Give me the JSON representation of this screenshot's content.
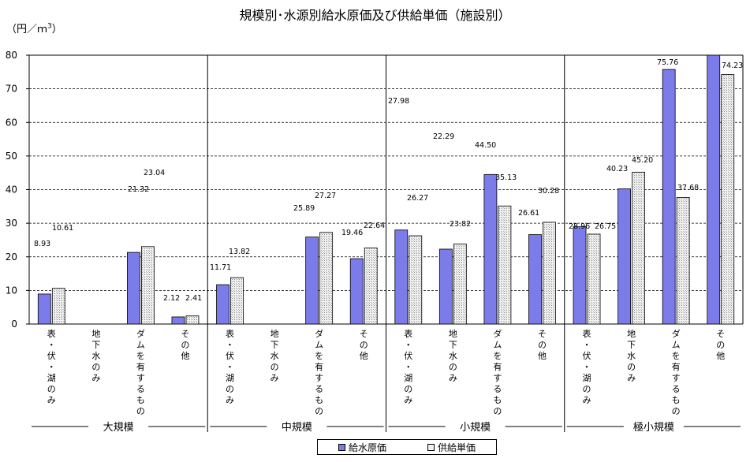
{
  "title": "規模別･水源別給水原価及び供給単価（施設別）",
  "unit": {
    "label": "（円／ｍ",
    "sup": "3",
    "close": "）"
  },
  "chart_data": {
    "type": "bar",
    "title": "規模別･水源別給水原価及び供給単価（施設別）",
    "ylabel": "（円／ｍ3）",
    "ylim": [
      0,
      80
    ],
    "yticks": [
      0,
      10,
      20,
      30,
      40,
      50,
      60,
      70,
      80
    ],
    "grid": true,
    "legend_position": "bottom",
    "colors": {
      "series_a": "#7b7bea",
      "series_b": "#f2f2f2"
    },
    "groups": [
      "大規模",
      "中規模",
      "小規模",
      "極小規模"
    ],
    "categories": [
      "表・伏・湖のみ",
      "地下水のみ",
      "ダムを有するもの",
      "その他"
    ],
    "series": [
      {
        "name": "給水原価",
        "values": [
          [
            8.93,
            null,
            21.32,
            2.12
          ],
          [
            11.71,
            null,
            25.89,
            19.46
          ],
          [
            27.98,
            22.29,
            44.5,
            26.61
          ],
          [
            28.96,
            40.23,
            75.76,
            81.5
          ]
        ]
      },
      {
        "name": "供給単価",
        "values": [
          [
            10.61,
            null,
            23.04,
            2.41
          ],
          [
            13.82,
            null,
            27.27,
            22.64
          ],
          [
            26.27,
            23.82,
            35.13,
            30.28
          ],
          [
            26.75,
            45.2,
            37.68,
            74.23
          ]
        ]
      }
    ],
    "data_labels": {
      "series_a": [
        [
          "8.93",
          "",
          "21.32",
          "2.12"
        ],
        [
          "11.71",
          "",
          "25.89",
          "19.46"
        ],
        [
          "27.98",
          "22.29",
          "44.50",
          "26.61"
        ],
        [
          "28.96",
          "40.23",
          "75.76",
          ""
        ]
      ],
      "series_b": [
        [
          "10.61",
          "",
          "23.04",
          "2.41"
        ],
        [
          "13.82",
          "",
          "27.27",
          "22.64"
        ],
        [
          "26.27",
          "23.82",
          "35.13",
          "30.28"
        ],
        [
          "26.75",
          "45.20",
          "37.68",
          "74.23"
        ]
      ]
    }
  }
}
